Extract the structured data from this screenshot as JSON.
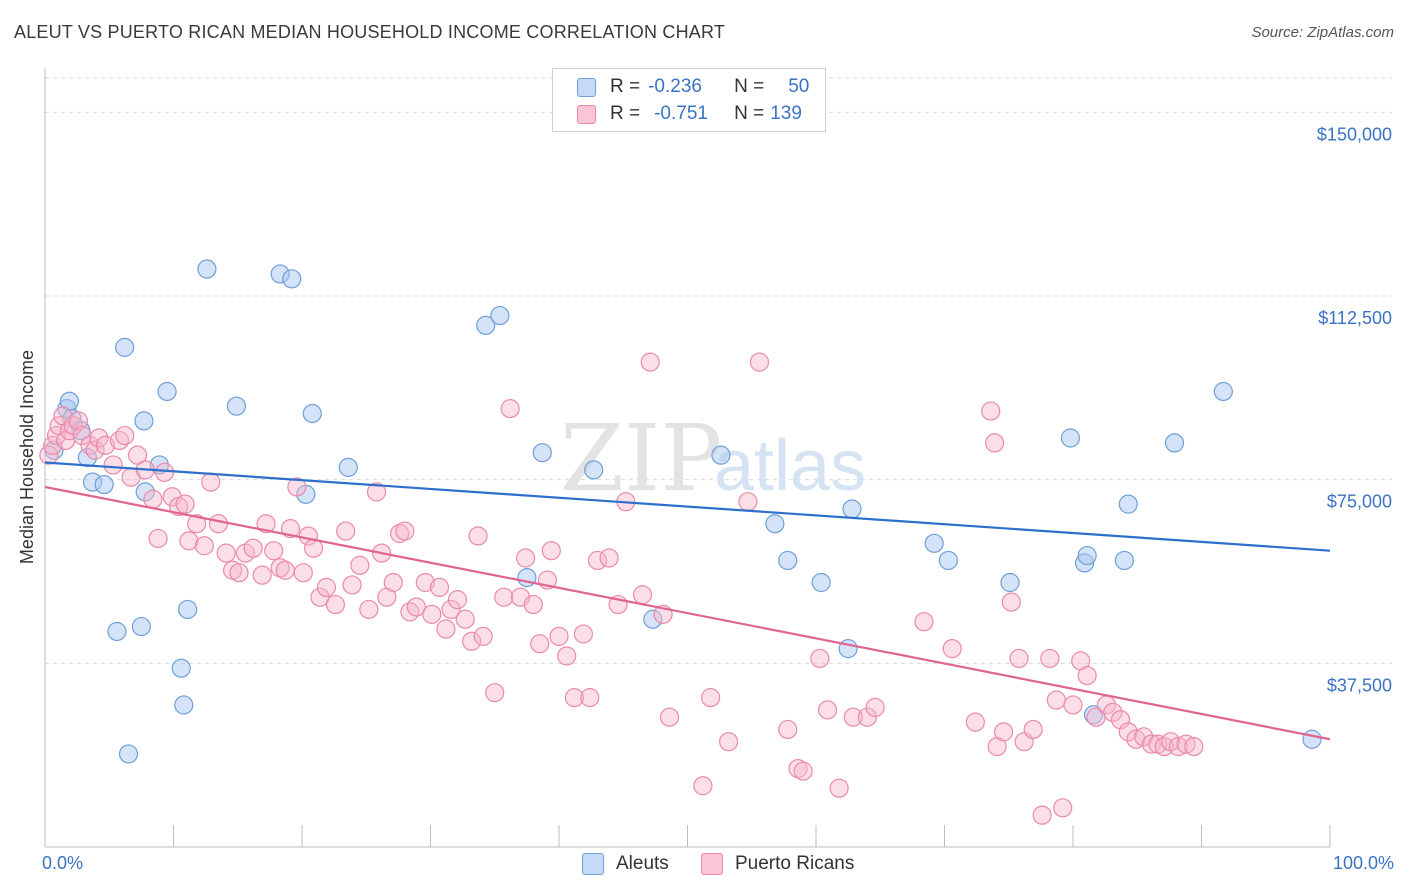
{
  "header": {
    "title": "ALEUT VS PUERTO RICAN MEDIAN HOUSEHOLD INCOME CORRELATION CHART",
    "source": "Source: ZipAtlas.com"
  },
  "legend": {
    "rows": [
      {
        "r_label": "R =",
        "r_value": "-0.236",
        "n_label": "N =",
        "n_value": "50"
      },
      {
        "r_label": "R =",
        "r_value": "-0.751",
        "n_label": "N =",
        "n_value": "139"
      }
    ]
  },
  "bottom_legend": {
    "aleuts": "Aleuts",
    "puerto_ricans": "Puerto Ricans"
  },
  "watermark": {
    "zip": "ZIP",
    "atlas": "atlas"
  },
  "colors": {
    "aleut_fill": "#a9c8f0",
    "aleut_stroke": "#6f9fd8",
    "aleut_line": "#2d6fcb",
    "pr_fill": "#f6b6cb",
    "pr_stroke": "#ea8aa9",
    "pr_line": "#e0648f",
    "grid": "#d9d9d9",
    "tick_text": "#3b73c4"
  },
  "chart_data": {
    "type": "scatter",
    "title": "ALEUT VS PUERTO RICAN MEDIAN HOUSEHOLD INCOME CORRELATION CHART",
    "xlabel": "",
    "ylabel": "Median Household Income",
    "xlim": [
      0,
      100
    ],
    "ylim": [
      0,
      157000
    ],
    "x_tick_labels": [
      "0.0%",
      "100.0%"
    ],
    "y_ticks": [
      37500,
      75000,
      112500,
      150000
    ],
    "y_tick_labels": [
      "$37,500",
      "$75,000",
      "$112,500",
      "$150,000"
    ],
    "grid": "horizontal dashed",
    "legend_position": "top-center",
    "series": [
      {
        "name": "Aleuts",
        "r": -0.236,
        "n": 50,
        "trend": {
          "x": [
            0,
            100
          ],
          "y": [
            78500,
            60500
          ]
        },
        "points": [
          [
            0.7,
            81000
          ],
          [
            1.7,
            89500
          ],
          [
            1.9,
            91000
          ],
          [
            2.1,
            87500
          ],
          [
            2.8,
            85000
          ],
          [
            3.3,
            79500
          ],
          [
            3.7,
            74500
          ],
          [
            4.6,
            74000
          ],
          [
            5.6,
            44000
          ],
          [
            6.2,
            102000
          ],
          [
            6.5,
            19000
          ],
          [
            7.5,
            45000
          ],
          [
            7.7,
            87000
          ],
          [
            7.8,
            72500
          ],
          [
            8.9,
            78000
          ],
          [
            9.5,
            93000
          ],
          [
            10.6,
            36500
          ],
          [
            10.8,
            29000
          ],
          [
            11.1,
            48500
          ],
          [
            12.6,
            118000
          ],
          [
            14.9,
            90000
          ],
          [
            18.3,
            117000
          ],
          [
            19.2,
            116000
          ],
          [
            20.3,
            72000
          ],
          [
            20.8,
            88500
          ],
          [
            23.6,
            77500
          ],
          [
            34.3,
            106500
          ],
          [
            35.4,
            108500
          ],
          [
            37.5,
            55000
          ],
          [
            38.7,
            80500
          ],
          [
            42.7,
            77000
          ],
          [
            47.3,
            46500
          ],
          [
            52.6,
            80000
          ],
          [
            56.8,
            66000
          ],
          [
            57.8,
            58500
          ],
          [
            60.4,
            54000
          ],
          [
            62.5,
            40500
          ],
          [
            62.8,
            69000
          ],
          [
            69.2,
            62000
          ],
          [
            70.3,
            58500
          ],
          [
            75.1,
            54000
          ],
          [
            79.8,
            83500
          ],
          [
            80.9,
            58000
          ],
          [
            81.1,
            59500
          ],
          [
            81.6,
            27000
          ],
          [
            84.0,
            58500
          ],
          [
            84.3,
            70000
          ],
          [
            87.9,
            82500
          ],
          [
            91.7,
            93000
          ],
          [
            98.6,
            22000
          ]
        ]
      },
      {
        "name": "Puerto Ricans",
        "r": -0.751,
        "n": 139,
        "trend": {
          "x": [
            0,
            100
          ],
          "y": [
            73500,
            22000
          ]
        },
        "points": [
          [
            0.3,
            80000
          ],
          [
            0.6,
            82000
          ],
          [
            0.9,
            84000
          ],
          [
            1.1,
            86000
          ],
          [
            1.4,
            88000
          ],
          [
            1.6,
            83000
          ],
          [
            1.9,
            85000
          ],
          [
            2.2,
            86000
          ],
          [
            2.6,
            87000
          ],
          [
            2.9,
            84000
          ],
          [
            3.5,
            82000
          ],
          [
            3.9,
            81000
          ],
          [
            4.2,
            83500
          ],
          [
            4.7,
            82000
          ],
          [
            5.3,
            78000
          ],
          [
            5.8,
            83000
          ],
          [
            6.2,
            84000
          ],
          [
            6.7,
            75500
          ],
          [
            7.2,
            80000
          ],
          [
            7.8,
            77000
          ],
          [
            8.4,
            71000
          ],
          [
            8.8,
            63000
          ],
          [
            9.3,
            76500
          ],
          [
            9.9,
            71500
          ],
          [
            10.4,
            69500
          ],
          [
            10.9,
            70000
          ],
          [
            11.2,
            62500
          ],
          [
            11.8,
            66000
          ],
          [
            12.4,
            61500
          ],
          [
            12.9,
            74500
          ],
          [
            13.5,
            66000
          ],
          [
            14.1,
            60000
          ],
          [
            14.6,
            56500
          ],
          [
            15.1,
            56000
          ],
          [
            15.6,
            60000
          ],
          [
            16.2,
            61000
          ],
          [
            16.9,
            55500
          ],
          [
            17.2,
            66000
          ],
          [
            17.8,
            60500
          ],
          [
            18.3,
            57000
          ],
          [
            18.7,
            56500
          ],
          [
            19.1,
            65000
          ],
          [
            19.6,
            73500
          ],
          [
            20.1,
            56000
          ],
          [
            20.5,
            63500
          ],
          [
            20.9,
            61000
          ],
          [
            21.4,
            51000
          ],
          [
            21.9,
            53000
          ],
          [
            22.6,
            49500
          ],
          [
            23.4,
            64500
          ],
          [
            23.9,
            53500
          ],
          [
            24.5,
            57500
          ],
          [
            25.2,
            48500
          ],
          [
            25.8,
            72500
          ],
          [
            26.2,
            60000
          ],
          [
            26.6,
            51000
          ],
          [
            27.1,
            54000
          ],
          [
            27.6,
            64000
          ],
          [
            28.0,
            64500
          ],
          [
            28.4,
            48000
          ],
          [
            28.9,
            49000
          ],
          [
            29.6,
            54000
          ],
          [
            30.1,
            47500
          ],
          [
            30.7,
            53000
          ],
          [
            31.2,
            44500
          ],
          [
            31.6,
            48500
          ],
          [
            32.1,
            50500
          ],
          [
            32.7,
            46500
          ],
          [
            33.2,
            42000
          ],
          [
            33.7,
            63500
          ],
          [
            34.1,
            43000
          ],
          [
            35.0,
            31500
          ],
          [
            35.7,
            51000
          ],
          [
            36.2,
            89500
          ],
          [
            37.0,
            51000
          ],
          [
            37.4,
            59000
          ],
          [
            38.0,
            49500
          ],
          [
            38.5,
            41500
          ],
          [
            39.1,
            54500
          ],
          [
            39.4,
            60500
          ],
          [
            40.0,
            43000
          ],
          [
            40.6,
            39000
          ],
          [
            41.2,
            30500
          ],
          [
            41.9,
            43500
          ],
          [
            42.4,
            30500
          ],
          [
            43.0,
            58500
          ],
          [
            43.9,
            59000
          ],
          [
            44.6,
            49500
          ],
          [
            45.2,
            70500
          ],
          [
            46.5,
            51500
          ],
          [
            47.1,
            99000
          ],
          [
            48.1,
            47500
          ],
          [
            48.6,
            26500
          ],
          [
            51.2,
            12500
          ],
          [
            51.8,
            30500
          ],
          [
            53.2,
            21500
          ],
          [
            54.7,
            70500
          ],
          [
            55.6,
            99000
          ],
          [
            57.8,
            24000
          ],
          [
            58.6,
            16000
          ],
          [
            59.0,
            15500
          ],
          [
            60.3,
            38500
          ],
          [
            60.9,
            28000
          ],
          [
            61.8,
            12000
          ],
          [
            62.9,
            26500
          ],
          [
            64.0,
            26500
          ],
          [
            64.6,
            28500
          ],
          [
            68.4,
            46000
          ],
          [
            70.6,
            40500
          ],
          [
            72.4,
            25500
          ],
          [
            73.6,
            89000
          ],
          [
            73.9,
            82500
          ],
          [
            74.1,
            20500
          ],
          [
            74.6,
            23500
          ],
          [
            75.2,
            50000
          ],
          [
            75.8,
            38500
          ],
          [
            76.2,
            21500
          ],
          [
            76.9,
            24000
          ],
          [
            77.6,
            6500
          ],
          [
            78.2,
            38500
          ],
          [
            78.7,
            30000
          ],
          [
            79.2,
            8000
          ],
          [
            80.0,
            29000
          ],
          [
            80.6,
            38000
          ],
          [
            81.1,
            35000
          ],
          [
            81.8,
            26500
          ],
          [
            82.6,
            29000
          ],
          [
            83.1,
            27500
          ],
          [
            83.7,
            26000
          ],
          [
            84.3,
            23500
          ],
          [
            84.9,
            22000
          ],
          [
            85.5,
            22500
          ],
          [
            86.1,
            21000
          ],
          [
            86.6,
            21000
          ],
          [
            87.1,
            20500
          ],
          [
            87.6,
            21500
          ],
          [
            88.2,
            20500
          ],
          [
            88.8,
            21000
          ],
          [
            89.4,
            20500
          ]
        ]
      }
    ]
  }
}
